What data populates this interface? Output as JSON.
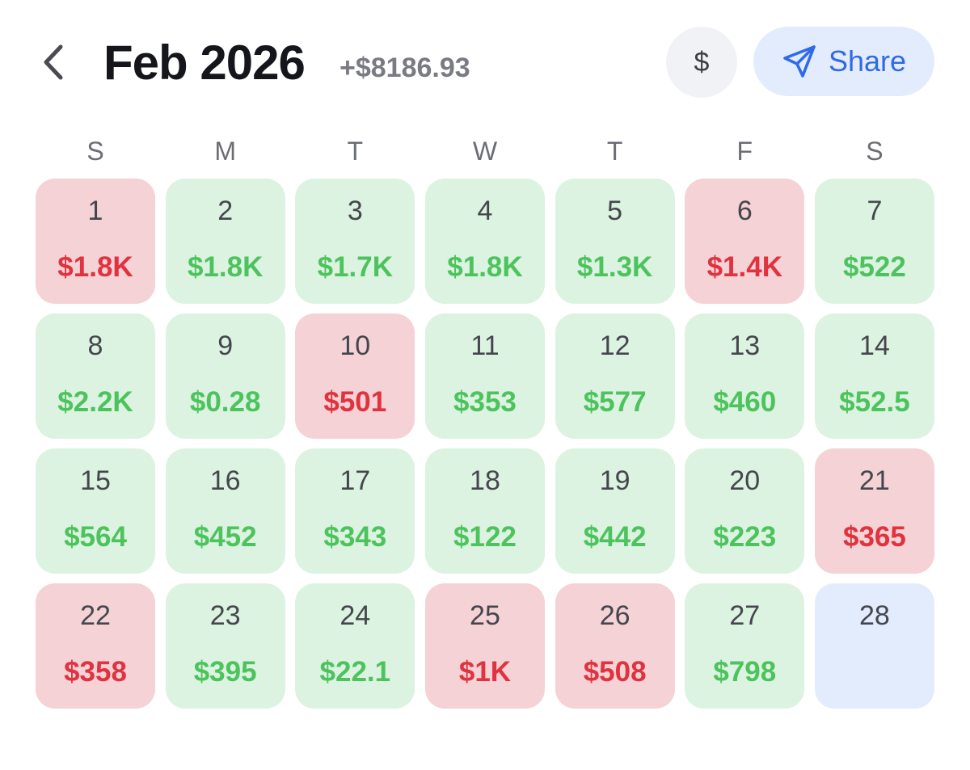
{
  "header": {
    "title": "Feb 2026",
    "total": "+$8186.93",
    "currency_label": "$",
    "share_label": "Share"
  },
  "icons": {
    "back": "chevron-left-icon",
    "share": "send-icon"
  },
  "colors": {
    "profit_bg": "#dcf3e1",
    "profit_text": "#4cc35c",
    "loss_bg": "#f4d2d5",
    "loss_text": "#e0323f",
    "today_bg": "#e3ecfd",
    "accent": "#2f6ae8"
  },
  "weekdays": [
    "S",
    "M",
    "T",
    "W",
    "T",
    "F",
    "S"
  ],
  "days": [
    {
      "day": "1",
      "amount": "$1.8K",
      "status": "loss"
    },
    {
      "day": "2",
      "amount": "$1.8K",
      "status": "profit"
    },
    {
      "day": "3",
      "amount": "$1.7K",
      "status": "profit"
    },
    {
      "day": "4",
      "amount": "$1.8K",
      "status": "profit"
    },
    {
      "day": "5",
      "amount": "$1.3K",
      "status": "profit"
    },
    {
      "day": "6",
      "amount": "$1.4K",
      "status": "loss"
    },
    {
      "day": "7",
      "amount": "$522",
      "status": "profit"
    },
    {
      "day": "8",
      "amount": "$2.2K",
      "status": "profit"
    },
    {
      "day": "9",
      "amount": "$0.28",
      "status": "profit"
    },
    {
      "day": "10",
      "amount": "$501",
      "status": "loss"
    },
    {
      "day": "11",
      "amount": "$353",
      "status": "profit"
    },
    {
      "day": "12",
      "amount": "$577",
      "status": "profit"
    },
    {
      "day": "13",
      "amount": "$460",
      "status": "profit"
    },
    {
      "day": "14",
      "amount": "$52.5",
      "status": "profit"
    },
    {
      "day": "15",
      "amount": "$564",
      "status": "profit"
    },
    {
      "day": "16",
      "amount": "$452",
      "status": "profit"
    },
    {
      "day": "17",
      "amount": "$343",
      "status": "profit"
    },
    {
      "day": "18",
      "amount": "$122",
      "status": "profit"
    },
    {
      "day": "19",
      "amount": "$442",
      "status": "profit"
    },
    {
      "day": "20",
      "amount": "$223",
      "status": "profit"
    },
    {
      "day": "21",
      "amount": "$365",
      "status": "loss"
    },
    {
      "day": "22",
      "amount": "$358",
      "status": "loss"
    },
    {
      "day": "23",
      "amount": "$395",
      "status": "profit"
    },
    {
      "day": "24",
      "amount": "$22.1",
      "status": "profit"
    },
    {
      "day": "25",
      "amount": "$1K",
      "status": "loss"
    },
    {
      "day": "26",
      "amount": "$508",
      "status": "loss"
    },
    {
      "day": "27",
      "amount": "$798",
      "status": "profit"
    },
    {
      "day": "28",
      "amount": "",
      "status": "today"
    }
  ]
}
